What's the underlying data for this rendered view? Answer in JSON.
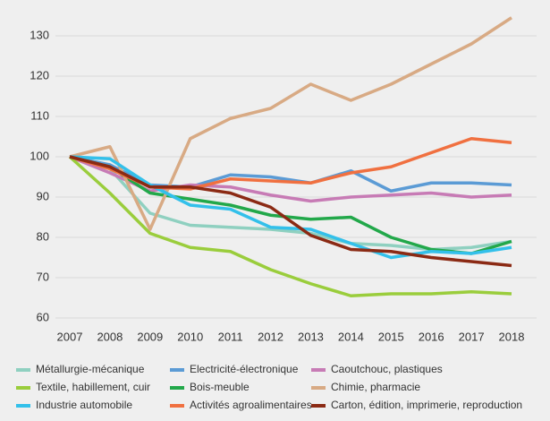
{
  "chart_data": {
    "type": "line",
    "categories": [
      "2007",
      "2008",
      "2009",
      "2010",
      "2011",
      "2012",
      "2013",
      "2014",
      "2015",
      "2016",
      "2017",
      "2018"
    ],
    "ylim": [
      60,
      130
    ],
    "yticks": [
      60,
      70,
      80,
      90,
      100,
      110,
      120,
      130
    ],
    "grid": true,
    "series": [
      {
        "name": "Métallurgie-mécanique",
        "color": "#8fd0c0",
        "values": [
          100,
          97,
          86,
          83,
          82.5,
          82,
          81,
          78.5,
          78,
          77,
          77.5,
          79
        ]
      },
      {
        "name": "Electricité-électronique",
        "color": "#5b9bd5",
        "values": [
          100,
          98,
          93,
          92.5,
          95.5,
          95,
          93.5,
          96.5,
          91.5,
          93.5,
          93.5,
          93
        ]
      },
      {
        "name": "Caoutchouc, plastiques",
        "color": "#c77bb5",
        "values": [
          100,
          96,
          91.5,
          93,
          92.5,
          90.5,
          89,
          90,
          90.5,
          91,
          90,
          90.5
        ]
      },
      {
        "name": "Textile, habillement, cuir",
        "color": "#9acd3c",
        "values": [
          100,
          91,
          81,
          77.5,
          76.5,
          72,
          68.5,
          65.5,
          66,
          66,
          66.5,
          66
        ]
      },
      {
        "name": "Bois-meuble",
        "color": "#22a84a",
        "values": [
          100,
          97.5,
          91,
          89.5,
          88,
          85.5,
          84.5,
          85,
          80,
          77,
          76,
          79
        ]
      },
      {
        "name": "Chimie, pharmacie",
        "color": "#d8aa84",
        "values": [
          100,
          102.5,
          82,
          104.5,
          109.5,
          112,
          118,
          114,
          118,
          123,
          128,
          134.5
        ]
      },
      {
        "name": "Industrie automobile",
        "color": "#33c0ea",
        "values": [
          100,
          99.5,
          93,
          88,
          87,
          82.5,
          82,
          78.5,
          75,
          76.5,
          76,
          77.5
        ]
      },
      {
        "name": "Activités agroalimentaires",
        "color": "#f07040",
        "values": [
          100,
          97,
          92.5,
          92,
          94.5,
          94,
          93.5,
          96,
          97.5,
          101,
          104.5,
          103.5
        ]
      },
      {
        "name": "Carton, édition, imprimerie, reproduction",
        "color": "#8b2a14",
        "values": [
          100,
          97.5,
          92.5,
          92.5,
          91,
          87.5,
          80.5,
          77,
          76.5,
          75,
          74,
          73
        ]
      }
    ]
  }
}
